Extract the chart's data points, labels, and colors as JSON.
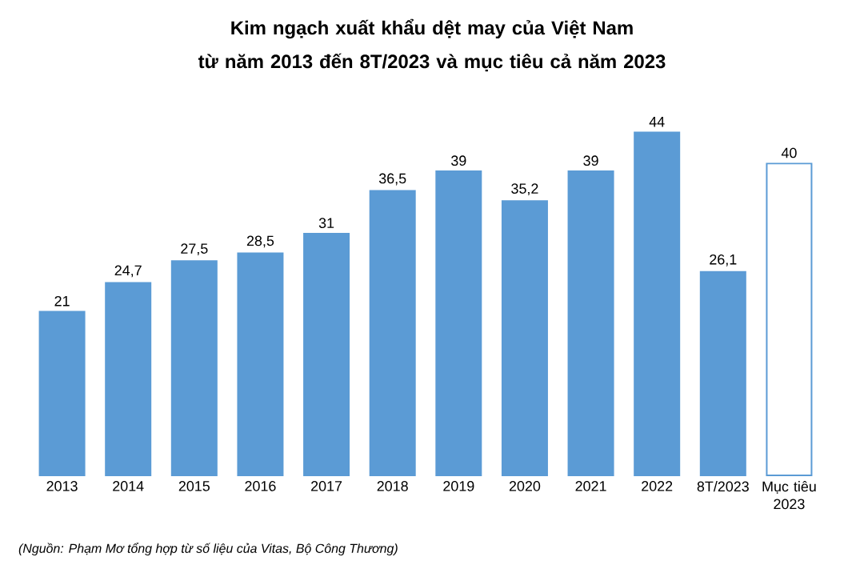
{
  "chart_data": {
    "type": "bar",
    "title": "Kim ngạch xuất khẩu dệt may của Việt Nam",
    "subtitle": "từ năm 2013 đến 8T/2023 và mục tiêu cả năm 2023",
    "categories": [
      "2013",
      "2014",
      "2015",
      "2016",
      "2017",
      "2018",
      "2019",
      "2020",
      "2021",
      "2022",
      "8T/2023",
      "Mục tiêu 2023"
    ],
    "values": [
      21,
      24.7,
      27.5,
      28.5,
      31,
      36.5,
      39,
      35.2,
      39,
      44,
      26.1,
      40
    ],
    "value_labels": [
      "21",
      "24,7",
      "27,5",
      "28,5",
      "31",
      "36,5",
      "39",
      "35,2",
      "39",
      "44",
      "26,1",
      "40"
    ],
    "color": "#5b9bd5",
    "colors": [
      "#5b9bd5",
      "#5b9bd5",
      "#5b9bd5",
      "#5b9bd5",
      "#5b9bd5",
      "#5b9bd5",
      "#5b9bd5",
      "#5b9bd5",
      "#5b9bd5",
      "#5b9bd5",
      "#5b9bd5",
      "#ffffff"
    ],
    "tick_labels": "x",
    "annotations": [
      "(Nguồn: Phạm Mơ tổng hợp từ số liệu của Vitas, Bộ Công Thương)"
    ]
  }
}
